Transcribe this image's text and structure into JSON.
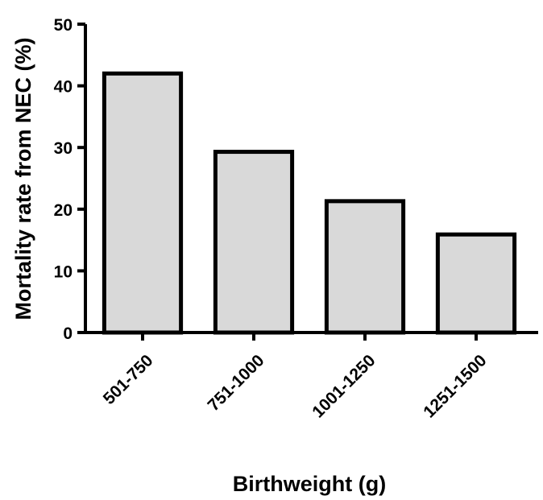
{
  "chart_data": {
    "type": "bar",
    "title": "",
    "xlabel": "Birthweight (g)",
    "ylabel": "Mortality rate from NEC (%)",
    "categories": [
      "501-750",
      "751-1000",
      "1001-1250",
      "1251-1500"
    ],
    "values": [
      42,
      29.3,
      21.3,
      15.9
    ],
    "ylim": [
      0,
      50
    ],
    "yticks": [
      "0",
      "10",
      "20",
      "30",
      "40",
      "50"
    ],
    "grid": false,
    "bar_fill": "#d9d9d9",
    "bar_stroke": "#000000"
  }
}
